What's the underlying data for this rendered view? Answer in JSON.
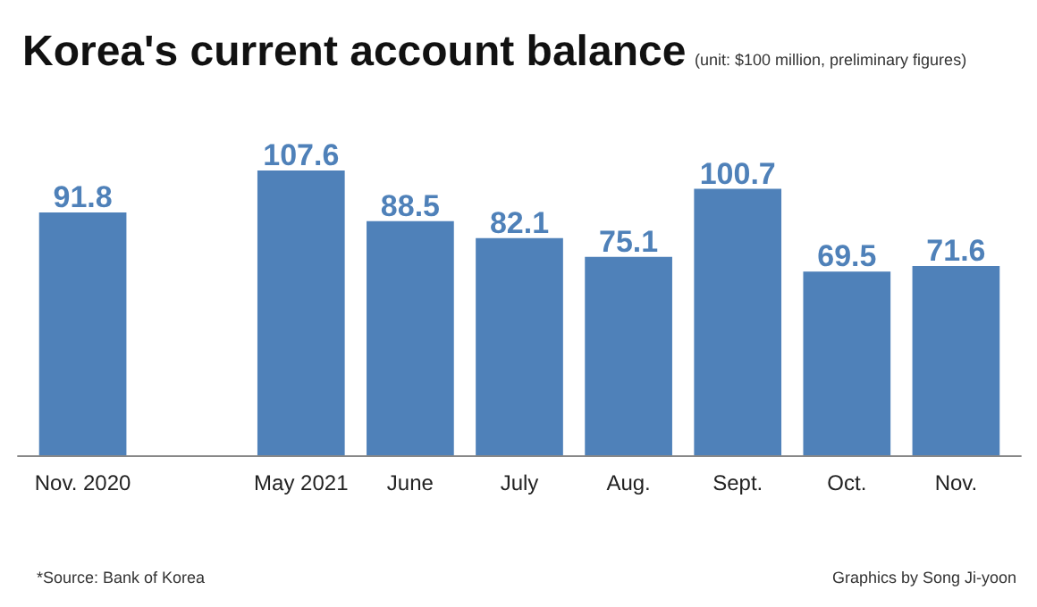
{
  "chart_data": {
    "type": "bar",
    "title": "Korea's current account balance",
    "subtitle": "(unit: $100 million, preliminary figures)",
    "categories": [
      "Nov. 2020",
      null,
      "May 2021",
      "June",
      "July",
      "Aug.",
      "Sept.",
      "Oct.",
      "Nov."
    ],
    "values": [
      91.8,
      null,
      107.6,
      88.5,
      82.1,
      75.1,
      100.7,
      69.5,
      71.6
    ],
    "color": "#4f81b9",
    "data_labels": true,
    "grid": false,
    "tick_labels": "x",
    "annotations": [
      "*Source: Bank of Korea",
      "Graphics by Song Ji-yoon"
    ]
  }
}
